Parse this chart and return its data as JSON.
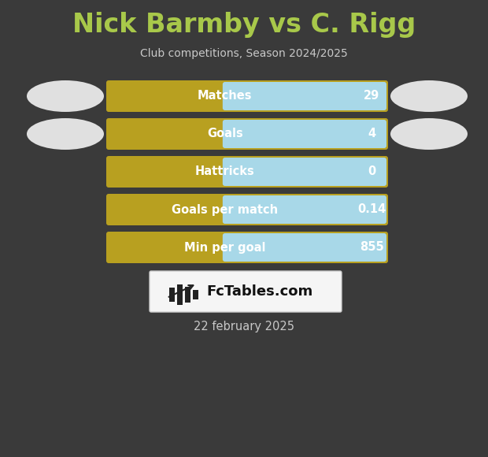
{
  "title": "Nick Barmby vs C. Rigg",
  "subtitle": "Club competitions, Season 2024/2025",
  "date_label": "22 february 2025",
  "background_color": "#3a3a3a",
  "title_color": "#a8c84a",
  "subtitle_color": "#c8c8c8",
  "date_color": "#c8c8c8",
  "bar_gold_color": "#b8a020",
  "bar_blue_color": "#a8d8e8",
  "rows": [
    {
      "label": "Matches",
      "value": "29"
    },
    {
      "label": "Goals",
      "value": "4"
    },
    {
      "label": "Hattricks",
      "value": "0"
    },
    {
      "label": "Goals per match",
      "value": "0.14"
    },
    {
      "label": "Min per goal",
      "value": "855"
    }
  ],
  "ellipse_color": "#e0e0e0",
  "logo_box_color": "#f5f5f5",
  "logo_text": "FcTables.com",
  "figsize": [
    6.2,
    5.8
  ],
  "dpi": 100
}
